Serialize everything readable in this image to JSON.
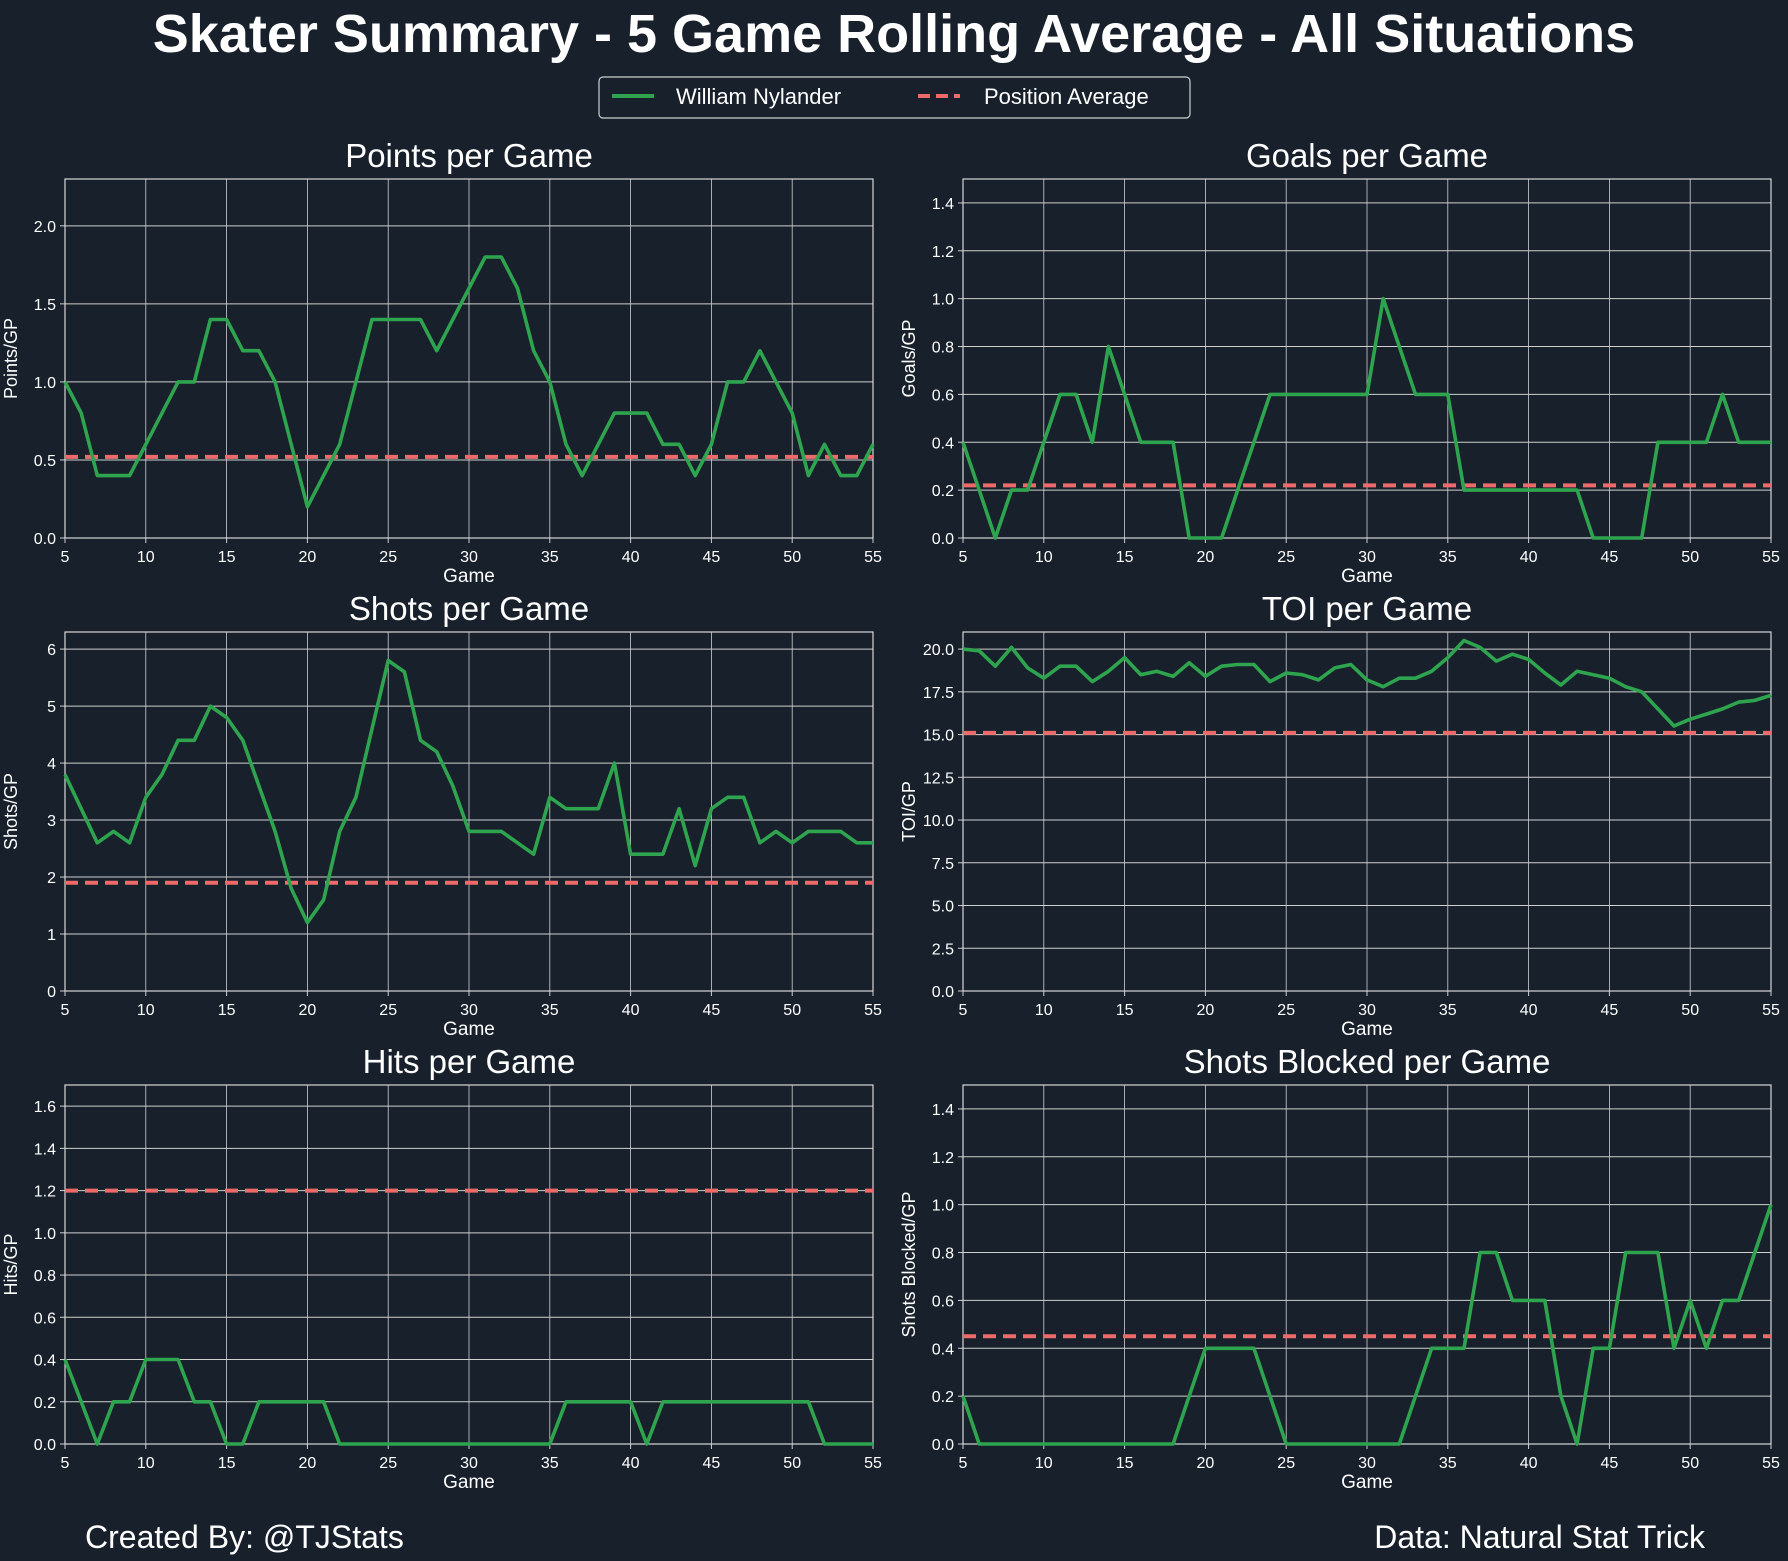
{
  "title": "Skater Summary - 5 Game Rolling Average - All Situations",
  "legend": {
    "player": "William Nylander",
    "average": "Position Average"
  },
  "footer": {
    "left": "Created By: @TJStats",
    "right": "Data: Natural Stat Trick"
  },
  "colors": {
    "background": "#17202b",
    "player": "#2ea44f",
    "average": "#ee6a6a",
    "grid": "#d0d0d0"
  },
  "chart_data": [
    {
      "type": "line",
      "title": "Points per Game",
      "xlabel": "Game",
      "ylabel": "Points/GP",
      "xlim": [
        5,
        55
      ],
      "ylim": [
        0,
        2.3
      ],
      "xticks": [
        5,
        10,
        15,
        20,
        25,
        30,
        35,
        40,
        45,
        50,
        55
      ],
      "yticks": [
        "0.0",
        "0.5",
        "1.0",
        "1.5",
        "2.0"
      ],
      "grid": true,
      "average": 0.52,
      "x_start": 5,
      "values": [
        1.0,
        0.8,
        0.4,
        0.4,
        0.4,
        0.6,
        0.8,
        1.0,
        1.0,
        1.4,
        1.4,
        1.2,
        1.2,
        1.0,
        0.6,
        0.2,
        0.4,
        0.6,
        1.0,
        1.4,
        1.4,
        1.4,
        1.4,
        1.2,
        1.4,
        1.6,
        1.8,
        1.8,
        1.6,
        1.2,
        1.0,
        0.6,
        0.4,
        0.6,
        0.8,
        0.8,
        0.8,
        0.6,
        0.6,
        0.4,
        0.6,
        1.0,
        1.0,
        1.2,
        1.0,
        0.8,
        0.4,
        0.6,
        0.4,
        0.4,
        0.6
      ]
    },
    {
      "type": "line",
      "title": "Goals per Game",
      "xlabel": "Game",
      "ylabel": "Goals/GP",
      "xlim": [
        5,
        55
      ],
      "ylim": [
        0,
        1.5
      ],
      "xticks": [
        5,
        10,
        15,
        20,
        25,
        30,
        35,
        40,
        45,
        50,
        55
      ],
      "yticks": [
        "0.0",
        "0.2",
        "0.4",
        "0.6",
        "0.8",
        "1.0",
        "1.2",
        "1.4"
      ],
      "grid": true,
      "average": 0.22,
      "x_start": 5,
      "values": [
        0.4,
        0.2,
        0.0,
        0.2,
        0.2,
        0.4,
        0.6,
        0.6,
        0.4,
        0.8,
        0.6,
        0.4,
        0.4,
        0.4,
        0.0,
        0.0,
        0.0,
        0.2,
        0.4,
        0.6,
        0.6,
        0.6,
        0.6,
        0.6,
        0.6,
        0.6,
        1.0,
        0.8,
        0.6,
        0.6,
        0.6,
        0.2,
        0.2,
        0.2,
        0.2,
        0.2,
        0.2,
        0.2,
        0.2,
        0.0,
        0.0,
        0.0,
        0.0,
        0.4,
        0.4,
        0.4,
        0.4,
        0.6,
        0.4,
        0.4,
        0.4
      ]
    },
    {
      "type": "line",
      "title": "Shots per Game",
      "xlabel": "Game",
      "ylabel": "Shots/GP",
      "xlim": [
        5,
        55
      ],
      "ylim": [
        0,
        6.3
      ],
      "xticks": [
        5,
        10,
        15,
        20,
        25,
        30,
        35,
        40,
        45,
        50,
        55
      ],
      "yticks": [
        "0",
        "1",
        "2",
        "3",
        "4",
        "5",
        "6"
      ],
      "grid": true,
      "average": 1.9,
      "x_start": 5,
      "values": [
        3.8,
        3.2,
        2.6,
        2.8,
        2.6,
        3.4,
        3.8,
        4.4,
        4.4,
        5.0,
        4.8,
        4.4,
        3.6,
        2.8,
        1.8,
        1.2,
        1.6,
        2.8,
        3.4,
        4.6,
        5.8,
        5.6,
        4.4,
        4.2,
        3.6,
        2.8,
        2.8,
        2.8,
        2.6,
        2.4,
        3.4,
        3.2,
        3.2,
        3.2,
        4.0,
        2.4,
        2.4,
        2.4,
        3.2,
        2.2,
        3.2,
        3.4,
        3.4,
        2.6,
        2.8,
        2.6,
        2.8,
        2.8,
        2.8,
        2.6,
        2.6
      ]
    },
    {
      "type": "line",
      "title": "TOI per Game",
      "xlabel": "Game",
      "ylabel": "TOI/GP",
      "xlim": [
        5,
        55
      ],
      "ylim": [
        0,
        21
      ],
      "xticks": [
        5,
        10,
        15,
        20,
        25,
        30,
        35,
        40,
        45,
        50,
        55
      ],
      "yticks": [
        "0.0",
        "2.5",
        "5.0",
        "7.5",
        "10.0",
        "12.5",
        "15.0",
        "17.5",
        "20.0"
      ],
      "grid": true,
      "average": 15.1,
      "x_start": 5,
      "values": [
        20.0,
        19.9,
        19.0,
        20.1,
        18.9,
        18.3,
        19.0,
        19.0,
        18.1,
        18.7,
        19.5,
        18.5,
        18.7,
        18.4,
        19.2,
        18.4,
        19.0,
        19.1,
        19.1,
        18.1,
        18.6,
        18.5,
        18.2,
        18.9,
        19.1,
        18.2,
        17.8,
        18.3,
        18.3,
        18.7,
        19.5,
        20.5,
        20.1,
        19.3,
        19.7,
        19.4,
        18.6,
        17.9,
        18.7,
        18.5,
        18.3,
        17.8,
        17.5,
        16.5,
        15.5,
        15.9,
        16.2,
        16.5,
        16.9,
        17.0,
        17.3
      ]
    },
    {
      "type": "line",
      "title": "Hits per Game",
      "xlabel": "Game",
      "ylabel": "Hits/GP",
      "xlim": [
        5,
        55
      ],
      "ylim": [
        0,
        1.7
      ],
      "xticks": [
        5,
        10,
        15,
        20,
        25,
        30,
        35,
        40,
        45,
        50,
        55
      ],
      "yticks": [
        "0.0",
        "0.2",
        "0.4",
        "0.6",
        "0.8",
        "1.0",
        "1.2",
        "1.4",
        "1.6"
      ],
      "grid": true,
      "average": 1.2,
      "x_start": 5,
      "values": [
        0.4,
        0.2,
        0.0,
        0.2,
        0.2,
        0.4,
        0.4,
        0.4,
        0.2,
        0.2,
        0.0,
        0.0,
        0.2,
        0.2,
        0.2,
        0.2,
        0.2,
        0.0,
        0.0,
        0.0,
        0.0,
        0.0,
        0.0,
        0.0,
        0.0,
        0.0,
        0.0,
        0.0,
        0.0,
        0.0,
        0.0,
        0.2,
        0.2,
        0.2,
        0.2,
        0.2,
        0.0,
        0.2,
        0.2,
        0.2,
        0.2,
        0.2,
        0.2,
        0.2,
        0.2,
        0.2,
        0.2,
        0.0,
        0.0,
        0.0,
        0.0
      ]
    },
    {
      "type": "line",
      "title": "Shots Blocked per Game",
      "xlabel": "Game",
      "ylabel": "Shots Blocked/GP",
      "xlim": [
        5,
        55
      ],
      "ylim": [
        0,
        1.5
      ],
      "xticks": [
        5,
        10,
        15,
        20,
        25,
        30,
        35,
        40,
        45,
        50,
        55
      ],
      "yticks": [
        "0.0",
        "0.2",
        "0.4",
        "0.6",
        "0.8",
        "1.0",
        "1.2",
        "1.4"
      ],
      "grid": true,
      "average": 0.45,
      "x_start": 5,
      "values": [
        0.2,
        0.0,
        0.0,
        0.0,
        0.0,
        0.0,
        0.0,
        0.0,
        0.0,
        0.0,
        0.0,
        0.0,
        0.0,
        0.0,
        0.2,
        0.4,
        0.4,
        0.4,
        0.4,
        0.2,
        0.0,
        0.0,
        0.0,
        0.0,
        0.0,
        0.0,
        0.0,
        0.0,
        0.2,
        0.4,
        0.4,
        0.4,
        0.8,
        0.8,
        0.6,
        0.6,
        0.6,
        0.2,
        0.0,
        0.4,
        0.4,
        0.8,
        0.8,
        0.8,
        0.4,
        0.6,
        0.4,
        0.6,
        0.6,
        0.8,
        1.0
      ]
    }
  ]
}
